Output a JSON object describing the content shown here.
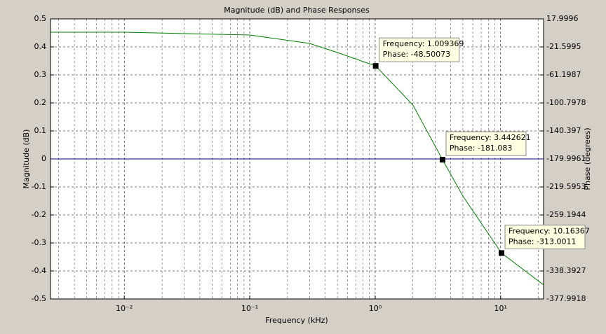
{
  "chart_data": {
    "type": "line",
    "title": "Magnitude (dB) and Phase Responses",
    "x_label": "Frequency (kHz)",
    "y_label": "Magnitude (dB)",
    "y2_label": "Phase (degrees)",
    "xscale": "log",
    "xlim": [
      0.00258,
      22
    ],
    "xticks": [
      {
        "value": 0.01,
        "label": "10⁻²"
      },
      {
        "value": 0.1,
        "label": "10⁻¹"
      },
      {
        "value": 1,
        "label": "10⁰"
      },
      {
        "value": 10,
        "label": "10¹"
      }
    ],
    "ylim": [
      -0.5,
      0.5
    ],
    "yticks": [
      0.5,
      0.4,
      0.3,
      0.2,
      0.1,
      0,
      -0.1,
      -0.2,
      -0.3,
      -0.4,
      -0.5
    ],
    "y2lim": [
      -377.9918,
      17.9996
    ],
    "y2ticks": [
      17.9996,
      -21.5995,
      -61.1987,
      -100.7978,
      -140.397,
      -179.9961,
      -219.5953,
      -259.1944,
      -338.3927,
      -377.9918
    ],
    "grid": true,
    "series": [
      {
        "name": "Magnitude",
        "color": "#000080",
        "x": [
          0.00258,
          22
        ],
        "values": [
          0,
          0
        ]
      },
      {
        "name": "Phase",
        "color": "#007f00",
        "axis": "y2",
        "x": [
          0.00258,
          0.01,
          0.1,
          0.3,
          0.5,
          1.009369,
          2,
          3.442621,
          5,
          10.16367,
          22
        ],
        "values": [
          -0.8,
          -0.8,
          -4.8,
          -16.7,
          -29.5,
          -48.50073,
          -103.8,
          -181.083,
          -232.5,
          -313.0011,
          -358
        ]
      }
    ],
    "datatips": {
      "x": [
        1.009369,
        3.442621,
        10.16367
      ],
      "values": [
        -48.50073,
        -181.083,
        -313.0011
      ],
      "x_labels": [
        "Frequency: 1.009369",
        "Frequency: 3.442621",
        "Frequency: 10.16367"
      ],
      "value_labels": [
        "Phase: -48.50073",
        "Phase: -181.083",
        "Phase: -313.0011"
      ]
    }
  }
}
